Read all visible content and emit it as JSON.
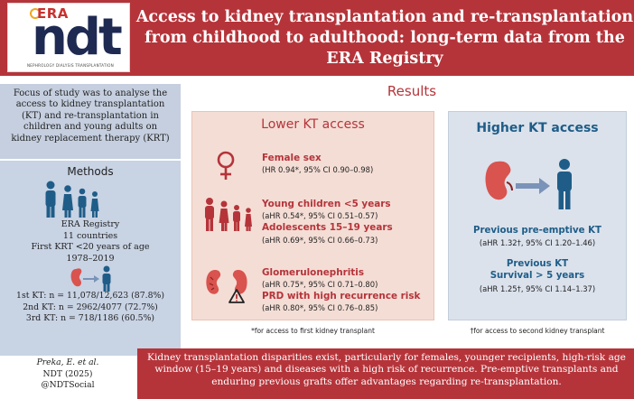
{
  "logo": {
    "era": "ERA",
    "ndt": "ndt",
    "subtitle": "NEPHROLOGY DIALYSIS TRANSPLANTATION"
  },
  "header": {
    "title": "Access to kidney transplantation and re-transplantation from childhood to adulthood: long-term data from the ERA Registry"
  },
  "focus_text": "Focus of study was to analyse the access to kidney transplantation (KT) and re-transplantation in children and young adults on kidney replacement therapy (KRT)",
  "methods": {
    "title": "Methods",
    "registry_lines": [
      "ERA Registry",
      "11 countries",
      "First KRT <20 years of age",
      "1978–2019"
    ],
    "kt_lines": [
      "1st KT: n = 11,078/12,623 (87.8%)",
      "2nd KT: n = 2962/4077 (72.7%)",
      "3rd KT: n = 718/1186 (60.5%)"
    ]
  },
  "results": {
    "title": "Results",
    "lower": {
      "title": "Lower KT access",
      "items": [
        {
          "title": "Female sex",
          "sub": "(HR 0.94*, 95% CI 0.90–0.98)"
        },
        {
          "title": "Young children <5 years",
          "sub": "(aHR 0.54*, 95% CI 0.51–0.57)"
        },
        {
          "title": "Adolescents 15–19 years",
          "sub": "(aHR 0.69*, 95% CI 0.66–0.73)"
        },
        {
          "title": "Glomerulonephritis",
          "sub": "(aHR 0.75*, 95% CI 0.71–0.80)"
        },
        {
          "title": "PRD with high recurrence risk",
          "sub": "(aHR 0.80*, 95% CI 0.76–0.85)"
        }
      ],
      "footnote": "*for access to first kidney transplant"
    },
    "higher": {
      "title": "Higher KT access",
      "items": [
        {
          "title": "Previous pre-emptive KT",
          "sub": "(aHR 1.32†, 95% CI 1.20–1.46)"
        },
        {
          "title_lines": [
            "Previous KT",
            "Survival > 5 years"
          ],
          "sub": "(aHR 1.25†, 95% CI 1.14–1.37)"
        }
      ],
      "footnote": "†for access to second kidney transplant"
    }
  },
  "citation": [
    "Preka, E. et al.",
    "NDT (2025)",
    "@NDTSocial"
  ],
  "conclusion": "Kidney transplantation disparities exist, particularly for females, younger recipients, high-risk age window (15–19 years) and diseases with a high risk of recurrence. Pre-emptive transplants and enduring previous grafts offer advantages regarding re-transplantation.",
  "colors": {
    "brand_red": "#b5343a",
    "navy": "#1f2a52",
    "blue": "#1f5d88",
    "kidney": "#d9534f"
  },
  "icons": [
    "female-sex-icon",
    "family-icon",
    "kidney-icon",
    "warning-icon",
    "arrow-right-icon",
    "person-icon"
  ]
}
